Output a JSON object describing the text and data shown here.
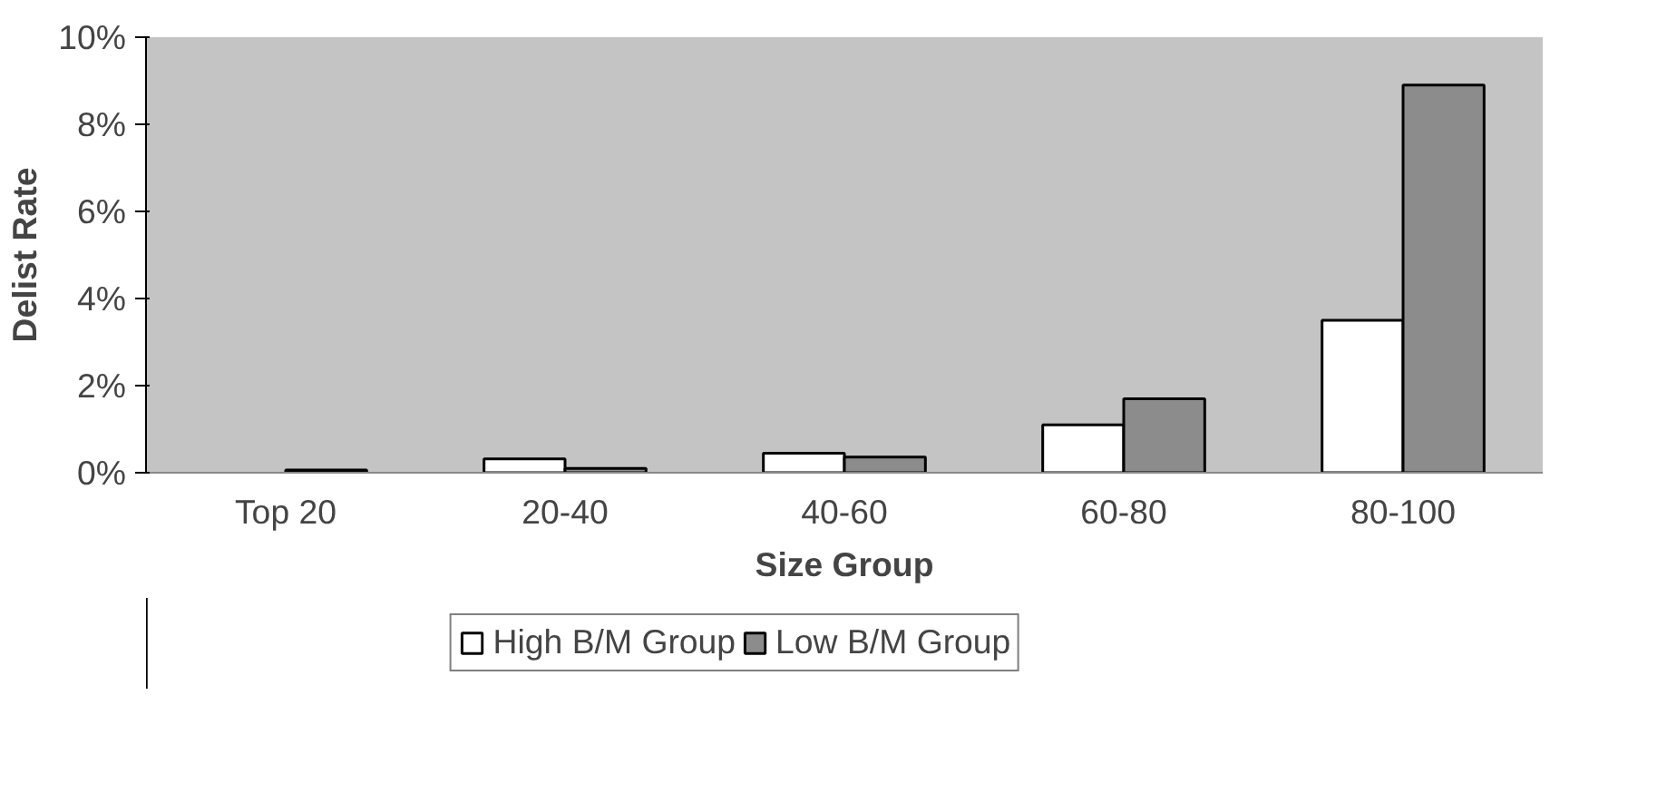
{
  "chart_data": {
    "type": "bar",
    "xlabel": "Size Group",
    "ylabel": "Delist Rate",
    "categories": [
      "Top 20",
      "20-40",
      "40-60",
      "60-80",
      "80-100"
    ],
    "series": [
      {
        "name": "High B/M Group",
        "color": "#ffffff",
        "values": [
          null,
          0.32,
          0.45,
          1.1,
          3.5
        ]
      },
      {
        "name": "Low B/M Group",
        "color": "#8c8c8c",
        "values": [
          0.06,
          0.1,
          0.36,
          1.7,
          8.9
        ]
      }
    ],
    "ylim": [
      0,
      10
    ],
    "yticks": [
      {
        "value": 0,
        "label": "0%"
      },
      {
        "value": 2,
        "label": "2%"
      },
      {
        "value": 4,
        "label": "4%"
      },
      {
        "value": 6,
        "label": "6%"
      },
      {
        "value": 8,
        "label": "8%"
      },
      {
        "value": 10,
        "label": "10%"
      }
    ],
    "grid": false,
    "legend": "bottom"
  }
}
